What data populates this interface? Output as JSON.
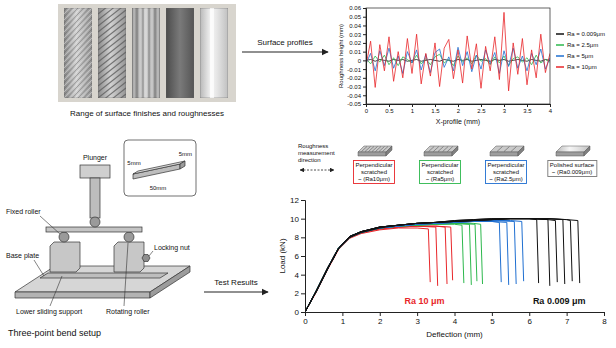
{
  "chart_data": [
    {
      "type": "line",
      "x_label": "X-profile (mm)",
      "y_label": "Roughness height (mm)",
      "xlim": [
        0,
        4
      ],
      "xticks": [
        0,
        0.5,
        1,
        1.5,
        2,
        2.5,
        3,
        3.5,
        4
      ],
      "ylim": [
        -0.05,
        0.06
      ],
      "yticks": [
        -0.05,
        -0.04,
        -0.03,
        -0.02,
        -0.01,
        0,
        0.01,
        0.02,
        0.03,
        0.04,
        0.05,
        0.06
      ],
      "legend": "right",
      "x": [
        0,
        0.1,
        0.2,
        0.3,
        0.4,
        0.5,
        0.6,
        0.7,
        0.8,
        0.9,
        1,
        1.1,
        1.2,
        1.3,
        1.4,
        1.5,
        1.6,
        1.7,
        1.8,
        1.9,
        2,
        2.1,
        2.2,
        2.3,
        2.4,
        2.5,
        2.6,
        2.7,
        2.8,
        2.9,
        3,
        3.1,
        3.2,
        3.3,
        3.4,
        3.5,
        3.6,
        3.7,
        3.8,
        3.9,
        4
      ],
      "series": [
        {
          "name": "Ra = 0.009μm",
          "color": "#111111",
          "values": [
            0,
            0.001,
            -0.001,
            0.001,
            0,
            -0.001,
            0.001,
            0,
            0.001,
            -0.001,
            0,
            0.001,
            -0.001,
            0,
            0.001,
            0,
            -0.001,
            0.001,
            0,
            -0.001,
            0.001,
            0,
            0.001,
            -0.001,
            0,
            0.001,
            0,
            -0.001,
            0.001,
            0,
            0.001,
            -0.001,
            0,
            0.001,
            0,
            -0.001,
            0.001,
            0,
            -0.001,
            0.001,
            0
          ]
        },
        {
          "name": "Ra = 2.5μm",
          "color": "#2db84d",
          "values": [
            0.002,
            -0.004,
            0.005,
            -0.002,
            0.006,
            -0.005,
            0.003,
            -0.006,
            0.004,
            0.001,
            -0.003,
            0.006,
            -0.004,
            0.002,
            -0.005,
            0.004,
            0.007,
            -0.003,
            0.001,
            -0.006,
            0.005,
            -0.002,
            0.003,
            -0.004,
            0.006,
            -0.001,
            0.002,
            -0.005,
            0.004,
            -0.003,
            0.005,
            -0.006,
            0.002,
            0.004,
            -0.002,
            0.003,
            -0.005,
            0.006,
            -0.003,
            0.001,
            -0.002
          ]
        },
        {
          "name": "Ra = 5μm",
          "color": "#1f6fd1",
          "values": [
            -0.004,
            0.008,
            -0.012,
            0.011,
            -0.006,
            0.014,
            -0.009,
            0.005,
            -0.015,
            0.01,
            -0.003,
            0.012,
            -0.011,
            0.007,
            -0.014,
            0.009,
            0.013,
            -0.008,
            0.004,
            -0.012,
            0.015,
            -0.006,
            0.01,
            -0.013,
            0.006,
            -0.01,
            0.012,
            -0.004,
            0.009,
            -0.015,
            0.011,
            -0.007,
            0.014,
            -0.009,
            0.005,
            -0.012,
            0.008,
            -0.005,
            0.013,
            -0.01,
            0.003
          ]
        },
        {
          "name": "Ra = 10μm",
          "color": "#e8262a",
          "values": [
            -0.006,
            0.022,
            -0.031,
            0.018,
            -0.012,
            0.027,
            -0.024,
            0.01,
            -0.02,
            0.025,
            -0.015,
            0.03,
            -0.027,
            0.008,
            -0.018,
            0.02,
            -0.03,
            0.014,
            0.024,
            -0.021,
            0.012,
            -0.026,
            0.028,
            -0.01,
            0.019,
            -0.032,
            0.016,
            -0.012,
            0.027,
            -0.022,
            0.055,
            -0.035,
            0.02,
            -0.016,
            0.025,
            -0.028,
            0.012,
            -0.02,
            0.03,
            -0.014,
            0.008
          ]
        }
      ]
    },
    {
      "type": "line",
      "x_label": "Deflection (mm)",
      "y_label": "Load (kN)",
      "xlim": [
        0,
        8
      ],
      "xticks": [
        0,
        1,
        2,
        3,
        4,
        5,
        6,
        7,
        8
      ],
      "ylim": [
        0,
        12
      ],
      "yticks": [
        0,
        2,
        4,
        6,
        8,
        10,
        12
      ],
      "measurement_note": "Roughness measurement direction",
      "samples": [
        {
          "label": [
            "Perpendicular scratched",
            "~ (Ra10μm)"
          ],
          "color": "#e8262a"
        },
        {
          "label": [
            "Perpendicular scratched",
            "~ (Ra5μm)"
          ],
          "color": "#2db84d"
        },
        {
          "label": [
            "Perpendicular scratched",
            "~ (Ra2.5μm)"
          ],
          "color": "#1f6fd1"
        },
        {
          "label": [
            "Polished surface",
            "~ (Ra0.009μm)"
          ],
          "color": "#777777"
        }
      ],
      "annotations": [
        {
          "text": "Ra 10 μm",
          "color": "#e8262a"
        },
        {
          "text": "Ra 0.009 μm",
          "color": "#111111"
        }
      ],
      "series": [
        {
          "color": "#e8262a",
          "x": [
            0,
            0.3,
            0.6,
            0.9,
            1.2,
            1.5,
            2,
            2.5,
            3,
            3.3,
            3.35
          ],
          "values": [
            0,
            2.1,
            4.5,
            6.7,
            7.9,
            8.4,
            8.8,
            9.0,
            9.0,
            8.9,
            3.2
          ]
        },
        {
          "color": "#e8262a",
          "x": [
            0,
            0.3,
            0.6,
            0.9,
            1.2,
            1.5,
            2,
            2.5,
            3,
            3.5,
            3.55
          ],
          "values": [
            0,
            2.2,
            4.6,
            6.8,
            8.0,
            8.5,
            8.9,
            9.1,
            9.2,
            9.1,
            2.8
          ]
        },
        {
          "color": "#e8262a",
          "x": [
            0,
            0.3,
            0.6,
            0.9,
            1.2,
            1.5,
            2,
            2.5,
            3,
            3.5,
            3.75,
            3.8
          ],
          "values": [
            0,
            2.2,
            4.6,
            6.8,
            8.0,
            8.5,
            8.9,
            9.1,
            9.2,
            9.2,
            9.1,
            3.0
          ]
        },
        {
          "color": "#e8262a",
          "x": [
            0,
            0.3,
            0.6,
            0.9,
            1.2,
            1.5,
            2,
            2.5,
            3,
            3.5,
            3.9,
            3.95
          ],
          "values": [
            0,
            2.2,
            4.7,
            6.9,
            8.1,
            8.6,
            9.0,
            9.1,
            9.2,
            9.2,
            9.1,
            3.4
          ]
        },
        {
          "color": "#2db84d",
          "x": [
            0,
            0.3,
            0.6,
            0.9,
            1.2,
            1.5,
            2,
            2.5,
            3,
            3.5,
            4,
            4.2,
            4.25
          ],
          "values": [
            0,
            2.2,
            4.6,
            6.9,
            8.1,
            8.6,
            9.0,
            9.2,
            9.3,
            9.4,
            9.4,
            9.3,
            3.1
          ]
        },
        {
          "color": "#2db84d",
          "x": [
            0,
            0.3,
            0.6,
            0.9,
            1.2,
            1.5,
            2,
            2.5,
            3,
            3.5,
            4,
            4.4,
            4.45
          ],
          "values": [
            0,
            2.2,
            4.6,
            6.8,
            8.0,
            8.6,
            9.0,
            9.2,
            9.3,
            9.4,
            9.5,
            9.4,
            2.9
          ]
        },
        {
          "color": "#2db84d",
          "x": [
            0,
            0.3,
            0.6,
            0.9,
            1.2,
            1.5,
            2,
            2.5,
            3,
            3.5,
            4,
            4.55,
            4.6
          ],
          "values": [
            0,
            2.3,
            4.7,
            6.9,
            8.1,
            8.6,
            9.0,
            9.2,
            9.4,
            9.5,
            9.5,
            9.4,
            3.3
          ]
        },
        {
          "color": "#2db84d",
          "x": [
            0,
            0.3,
            0.6,
            0.9,
            1.2,
            1.5,
            2,
            2.5,
            3,
            3.5,
            4,
            4.5,
            4.7,
            4.75
          ],
          "values": [
            0,
            2.2,
            4.6,
            6.8,
            8.0,
            8.5,
            9.0,
            9.2,
            9.3,
            9.4,
            9.5,
            9.5,
            9.4,
            3.0
          ]
        },
        {
          "color": "#1f6fd1",
          "x": [
            0,
            0.3,
            0.6,
            0.9,
            1.2,
            1.5,
            2,
            2.5,
            3,
            3.5,
            4,
            4.5,
            5,
            5.2,
            5.25
          ],
          "values": [
            0,
            2.2,
            4.6,
            6.8,
            8.0,
            8.6,
            9.0,
            9.2,
            9.4,
            9.5,
            9.6,
            9.7,
            9.7,
            9.6,
            3.2
          ]
        },
        {
          "color": "#1f6fd1",
          "x": [
            0,
            0.3,
            0.6,
            0.9,
            1.2,
            1.5,
            2,
            2.5,
            3,
            3.5,
            4,
            4.5,
            5,
            5.4,
            5.45
          ],
          "values": [
            0,
            2.2,
            4.6,
            6.8,
            8.1,
            8.6,
            9.1,
            9.3,
            9.4,
            9.5,
            9.6,
            9.7,
            9.7,
            9.6,
            2.9
          ]
        },
        {
          "color": "#1f6fd1",
          "x": [
            0,
            0.3,
            0.6,
            0.9,
            1.2,
            1.5,
            2,
            2.5,
            3,
            3.5,
            4,
            4.5,
            5,
            5.6,
            5.65
          ],
          "values": [
            0,
            2.3,
            4.7,
            6.9,
            8.1,
            8.6,
            9.0,
            9.2,
            9.4,
            9.5,
            9.6,
            9.7,
            9.8,
            9.7,
            3.0
          ]
        },
        {
          "color": "#1f6fd1",
          "x": [
            0,
            0.3,
            0.6,
            0.9,
            1.2,
            1.5,
            2,
            2.5,
            3,
            3.5,
            4,
            4.5,
            5,
            5.5,
            5.8,
            5.85
          ],
          "values": [
            0,
            2.2,
            4.6,
            6.8,
            8.0,
            8.5,
            9.0,
            9.2,
            9.4,
            9.5,
            9.6,
            9.7,
            9.8,
            9.8,
            9.7,
            3.3
          ]
        },
        {
          "color": "#111111",
          "x": [
            0,
            0.3,
            0.6,
            0.9,
            1.2,
            1.5,
            2,
            2.5,
            3,
            3.5,
            4,
            4.5,
            5,
            5.5,
            6,
            6.2,
            6.25
          ],
          "values": [
            0,
            2.2,
            4.6,
            6.8,
            8.0,
            8.6,
            9.1,
            9.3,
            9.5,
            9.6,
            9.7,
            9.8,
            9.9,
            10.0,
            10.0,
            9.9,
            3.1
          ]
        },
        {
          "color": "#111111",
          "x": [
            0,
            0.3,
            0.6,
            0.9,
            1.2,
            1.5,
            2,
            2.5,
            3,
            3.5,
            4,
            4.5,
            5,
            5.5,
            6,
            6.5,
            6.55
          ],
          "values": [
            0,
            2.2,
            4.6,
            6.8,
            8.1,
            8.6,
            9.1,
            9.3,
            9.5,
            9.6,
            9.8,
            9.9,
            10.0,
            10.0,
            10.0,
            9.9,
            2.8
          ]
        },
        {
          "color": "#111111",
          "x": [
            0,
            0.3,
            0.6,
            0.9,
            1.2,
            1.5,
            2,
            2.5,
            3,
            3.5,
            4,
            4.5,
            5,
            5.5,
            6,
            6.5,
            6.7,
            6.75
          ],
          "values": [
            0,
            2.3,
            4.7,
            6.9,
            8.1,
            8.6,
            9.1,
            9.3,
            9.5,
            9.6,
            9.7,
            9.8,
            9.9,
            10.0,
            10.0,
            9.9,
            9.8,
            3.2
          ]
        },
        {
          "color": "#111111",
          "x": [
            0,
            0.3,
            0.6,
            0.9,
            1.2,
            1.5,
            2,
            2.5,
            3,
            3.5,
            4,
            4.5,
            5,
            5.5,
            6,
            6.5,
            6.9,
            6.95
          ],
          "values": [
            0,
            2.2,
            4.6,
            6.8,
            8.0,
            8.6,
            9.1,
            9.3,
            9.5,
            9.6,
            9.7,
            9.8,
            9.9,
            10.0,
            10.0,
            10.0,
            9.9,
            3.0
          ]
        },
        {
          "color": "#111111",
          "x": [
            0,
            0.3,
            0.6,
            0.9,
            1.2,
            1.5,
            2,
            2.5,
            3,
            3.5,
            4,
            4.5,
            5,
            5.5,
            6,
            6.5,
            7,
            7.1,
            7.15
          ],
          "values": [
            0,
            2.2,
            4.6,
            6.8,
            8.1,
            8.6,
            9.1,
            9.3,
            9.5,
            9.6,
            9.8,
            9.9,
            10.0,
            10.0,
            10.0,
            10.0,
            9.9,
            9.8,
            3.3
          ]
        },
        {
          "color": "#111111",
          "x": [
            0,
            0.3,
            0.6,
            0.9,
            1.2,
            1.5,
            2,
            2.5,
            3,
            3.5,
            4,
            4.5,
            5,
            5.5,
            6,
            6.5,
            7,
            7.3,
            7.35
          ],
          "values": [
            0,
            2.2,
            4.6,
            6.8,
            8.0,
            8.5,
            9.0,
            9.3,
            9.5,
            9.6,
            9.7,
            9.8,
            9.9,
            10.0,
            10.0,
            10.0,
            9.9,
            9.8,
            3.1
          ]
        }
      ]
    }
  ],
  "captions": {
    "photo": "Range of surface finishes and roughnesses",
    "profiles_arrow": "Surface profiles",
    "setup": "Three-point bend setup",
    "results_arrow": "Test Results"
  },
  "diagram": {
    "labels": [
      "Plunger",
      "Fixed roller",
      "Base plate",
      "Lower sliding support",
      "Rotating roller",
      "Locking nut"
    ],
    "dimensions": [
      "5mm",
      "5mm",
      "50mm"
    ]
  }
}
